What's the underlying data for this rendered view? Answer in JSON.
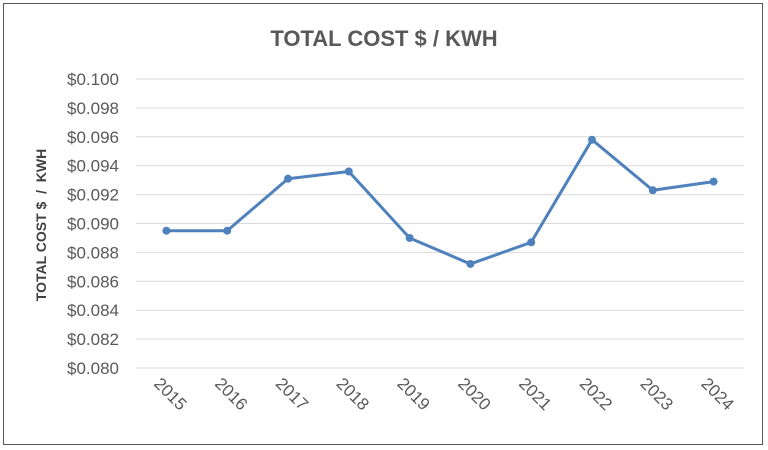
{
  "chart_data": {
    "type": "line",
    "title": "TOTAL COST $ / KWH",
    "xlabel": "",
    "ylabel": "TOTAL COST $  /  KWH",
    "categories": [
      "2015",
      "2016",
      "2017",
      "2018",
      "2019",
      "2020",
      "2021",
      "2022",
      "2023",
      "2024"
    ],
    "series": [
      {
        "values": [
          0.0895,
          0.0895,
          0.0931,
          0.0936,
          0.089,
          0.0872,
          0.0887,
          0.0958,
          0.0923,
          0.0929
        ]
      }
    ],
    "ylim": [
      0.08,
      0.1
    ],
    "ytick_step": 0.002,
    "ytick_labels": [
      "$0.080",
      "$0.082",
      "$0.084",
      "$0.086",
      "$0.088",
      "$0.090",
      "$0.092",
      "$0.094",
      "$0.096",
      "$0.098",
      "$0.100"
    ],
    "grid": true,
    "legend": "none",
    "colors": {
      "series": "#4F81BD",
      "grid": "#D9D9D9",
      "text": "#595959"
    }
  }
}
